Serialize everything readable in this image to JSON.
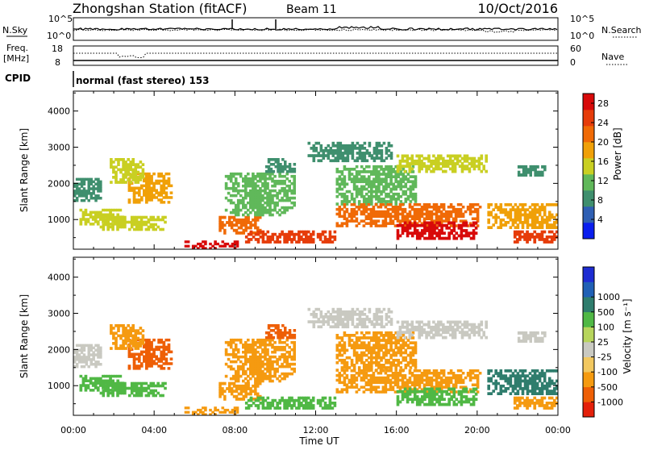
{
  "header": {
    "station_title": "Zhongshan Station (fitACF)",
    "beam_label": "Beam 11",
    "date_label": "10/Oct/2016"
  },
  "top_panels": {
    "nsky_label": "N.Sky",
    "nsearch_label": "N.Search",
    "count_ticks": [
      "10^5",
      "10^0"
    ],
    "freq_label": "Freq.",
    "freq_unit": "[MHz]",
    "freq_ticks": [
      "18",
      "8"
    ],
    "nave_label": "Nave",
    "nave_ticks": [
      "60",
      "0"
    ],
    "cpid_label": "CPID",
    "cpid_value": "normal (fast stereo) 153"
  },
  "colors": {
    "power": [
      "#0a1eee",
      "#2f5fb3",
      "#3f8f6e",
      "#60b85a",
      "#c9cf22",
      "#f0a008",
      "#f06a06",
      "#e63c0a",
      "#d80a0a"
    ],
    "velocity": [
      "#e4200a",
      "#ee5f06",
      "#f59a10",
      "#f2c860",
      "#c9c9c1",
      "#b7d55c",
      "#50b845",
      "#2f7d6d",
      "#2060b5",
      "#1d2cd2"
    ]
  },
  "chart_data": [
    {
      "type": "heatmap",
      "title": "Power",
      "ylabel": "Slant Range [km]",
      "xlabel": "Time UT",
      "x_ticks": [
        "00:00",
        "04:00",
        "08:00",
        "12:00",
        "16:00",
        "20:00",
        "00:00"
      ],
      "y_ticks": [
        1000,
        2000,
        3000,
        4000
      ],
      "xlim_hours": [
        0,
        24
      ],
      "ylim_km": [
        180,
        4550
      ],
      "colorbar": {
        "label": "Power [dB]",
        "ticks": [
          4,
          8,
          12,
          16,
          20,
          24,
          28
        ],
        "range": [
          0,
          30
        ]
      },
      "regions": [
        {
          "t0": 0.0,
          "t1": 1.4,
          "r0": 1500,
          "r1": 2150,
          "value": 9
        },
        {
          "t0": 0.3,
          "t1": 2.5,
          "r0": 850,
          "r1": 1300,
          "value": 14
        },
        {
          "t0": 1.3,
          "t1": 4.6,
          "r0": 700,
          "r1": 1100,
          "value": 16
        },
        {
          "t0": 2.7,
          "t1": 4.9,
          "r0": 1450,
          "r1": 2300,
          "value": 18
        },
        {
          "t0": 1.8,
          "t1": 3.5,
          "r0": 2000,
          "r1": 2700,
          "value": 14
        },
        {
          "t0": 5.5,
          "t1": 8.3,
          "r0": 180,
          "r1": 420,
          "value": 28
        },
        {
          "t0": 7.2,
          "t1": 9.3,
          "r0": 600,
          "r1": 1100,
          "value": 22
        },
        {
          "t0": 7.5,
          "t1": 11.0,
          "r0": 1100,
          "r1": 2300,
          "value": 11
        },
        {
          "t0": 8.5,
          "t1": 13.0,
          "r0": 350,
          "r1": 700,
          "value": 24
        },
        {
          "t0": 9.5,
          "t1": 11.0,
          "r0": 2300,
          "r1": 2700,
          "value": 9
        },
        {
          "t0": 13.0,
          "t1": 17.0,
          "r0": 1400,
          "r1": 2500,
          "value": 12
        },
        {
          "t0": 13.0,
          "t1": 20.2,
          "r0": 800,
          "r1": 1450,
          "value": 20
        },
        {
          "t0": 16.0,
          "t1": 20.0,
          "r0": 450,
          "r1": 950,
          "value": 27
        },
        {
          "t0": 11.6,
          "t1": 15.8,
          "r0": 2600,
          "r1": 3150,
          "value": 9
        },
        {
          "t0": 16.0,
          "t1": 20.5,
          "r0": 2300,
          "r1": 2800,
          "value": 14
        },
        {
          "t0": 20.5,
          "t1": 24.0,
          "r0": 750,
          "r1": 1450,
          "value": 19
        },
        {
          "t0": 21.8,
          "t1": 24.0,
          "r0": 350,
          "r1": 700,
          "value": 25
        },
        {
          "t0": 22.0,
          "t1": 23.4,
          "r0": 2200,
          "r1": 2500,
          "value": 8
        }
      ]
    },
    {
      "type": "heatmap",
      "title": "Velocity",
      "ylabel": "Slant Range [km]",
      "xlabel": "Time UT",
      "x_ticks": [
        "00:00",
        "04:00",
        "08:00",
        "12:00",
        "16:00",
        "20:00",
        "00:00"
      ],
      "y_ticks": [
        1000,
        2000,
        3000,
        4000
      ],
      "xlim_hours": [
        0,
        24
      ],
      "ylim_km": [
        180,
        4550
      ],
      "colorbar": {
        "label": "Velocity [m s⁻¹]",
        "ticks": [
          "1000",
          "500",
          "100",
          "25",
          "-25",
          "-100",
          "-500",
          "-1000"
        ]
      },
      "regions": [
        {
          "t0": 0.0,
          "t1": 1.4,
          "r0": 1500,
          "r1": 2150,
          "value": 0
        },
        {
          "t0": 0.3,
          "t1": 2.5,
          "r0": 850,
          "r1": 1300,
          "value": 150
        },
        {
          "t0": 1.3,
          "t1": 4.6,
          "r0": 700,
          "r1": 1100,
          "value": 200
        },
        {
          "t0": 2.7,
          "t1": 4.9,
          "r0": 1450,
          "r1": 2300,
          "value": -500
        },
        {
          "t0": 1.8,
          "t1": 3.5,
          "r0": 2000,
          "r1": 2700,
          "value": -300
        },
        {
          "t0": 5.5,
          "t1": 8.3,
          "r0": 180,
          "r1": 420,
          "value": -100
        },
        {
          "t0": 7.2,
          "t1": 9.3,
          "r0": 600,
          "r1": 1100,
          "value": -300
        },
        {
          "t0": 7.5,
          "t1": 11.0,
          "r0": 1100,
          "r1": 2300,
          "value": -400
        },
        {
          "t0": 8.5,
          "t1": 13.0,
          "r0": 350,
          "r1": 700,
          "value": 300
        },
        {
          "t0": 9.5,
          "t1": 11.0,
          "r0": 2300,
          "r1": 2700,
          "value": -500
        },
        {
          "t0": 13.0,
          "t1": 17.0,
          "r0": 1400,
          "r1": 2500,
          "value": -200
        },
        {
          "t0": 13.0,
          "t1": 20.2,
          "r0": 800,
          "r1": 1450,
          "value": -150
        },
        {
          "t0": 16.0,
          "t1": 20.0,
          "r0": 450,
          "r1": 950,
          "value": 250
        },
        {
          "t0": 11.6,
          "t1": 15.8,
          "r0": 2600,
          "r1": 3150,
          "value": 0
        },
        {
          "t0": 16.0,
          "t1": 20.5,
          "r0": 2300,
          "r1": 2800,
          "value": 0
        },
        {
          "t0": 20.5,
          "t1": 24.0,
          "r0": 750,
          "r1": 1450,
          "value": 700
        },
        {
          "t0": 21.8,
          "t1": 24.0,
          "r0": 350,
          "r1": 700,
          "value": -300
        },
        {
          "t0": 22.0,
          "t1": 23.4,
          "r0": 2200,
          "r1": 2500,
          "value": 0
        }
      ]
    }
  ]
}
